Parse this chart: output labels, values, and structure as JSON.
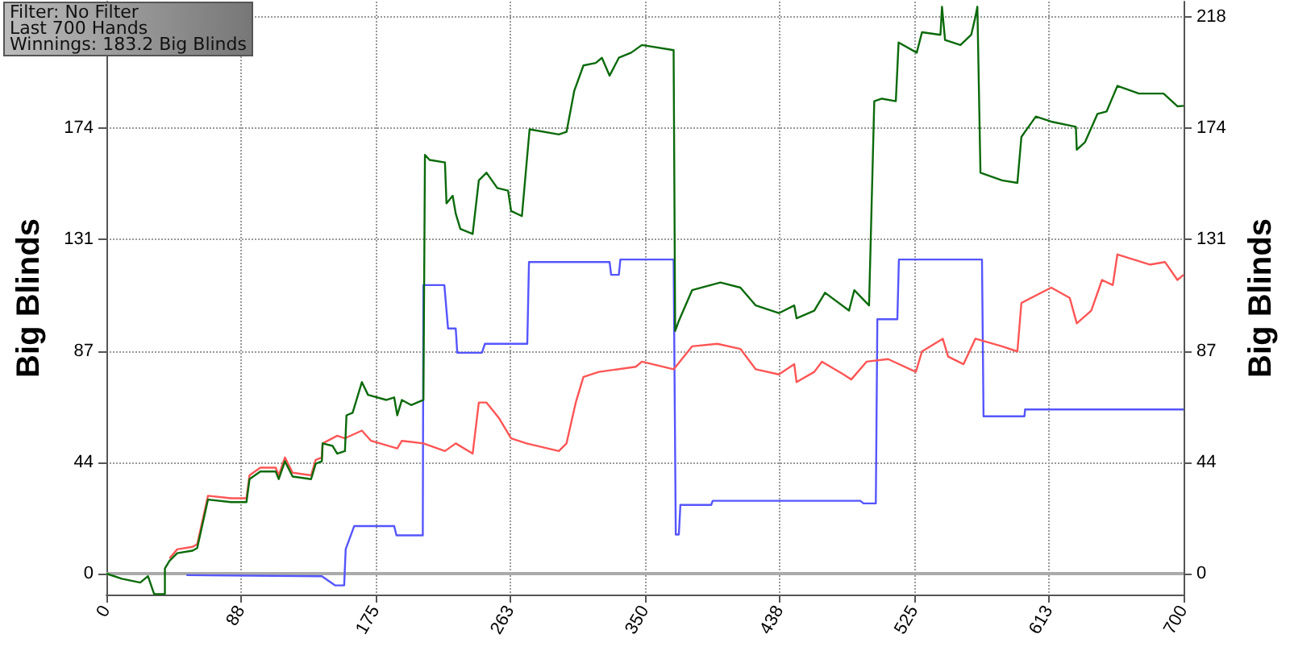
{
  "chart_data": {
    "type": "line",
    "ylabel": "Big Blinds",
    "y2label": "Big Blinds",
    "annotations": [
      "Filter: No Filter",
      "Last 700 Hands",
      "Winnings: 183.2 Big Blinds"
    ],
    "xlim": [
      0,
      700
    ],
    "xticks": [
      0,
      {
        "value": 87.5,
        "label": "88"
      },
      {
        "value": 175,
        "label": "175"
      },
      {
        "value": 262.5,
        "label": "263"
      },
      {
        "value": 350,
        "label": "350"
      },
      {
        "value": 437.5,
        "label": "438"
      },
      {
        "value": 525,
        "label": "525"
      },
      {
        "value": 612.5,
        "label": "613"
      },
      700
    ],
    "ylim": [
      -8.2,
      224
    ],
    "yticks": [
      0,
      {
        "value": 43.6,
        "label": "44"
      },
      {
        "value": 87.2,
        "label": "87"
      },
      {
        "value": 130.8,
        "label": "131"
      },
      {
        "value": 174.4,
        "label": "174"
      },
      {
        "value": 218,
        "label": null
      }
    ],
    "y2lim": [
      -8.2,
      224
    ],
    "y2ticks": [
      0,
      {
        "value": 43.6,
        "label": "44"
      },
      {
        "value": 87.2,
        "label": "87"
      },
      {
        "value": 130.8,
        "label": "131"
      },
      {
        "value": 174.4,
        "label": "174"
      },
      218
    ],
    "grid": true,
    "marker": "none",
    "line_style": "solid",
    "ref_lines": [
      {
        "axis": "y",
        "value": 0,
        "label": null,
        "color": "#aaaaaa"
      }
    ],
    "series": [
      {
        "color": "#0a6a0a",
        "x": [
          0,
          10,
          22,
          27,
          31,
          38,
          38,
          41,
          46,
          56,
          59,
          66,
          81,
          91,
          93,
          100,
          110,
          112,
          116,
          121,
          133,
          136,
          140,
          140.5,
          147,
          150,
          155,
          156,
          160,
          166,
          170,
          182,
          187,
          189,
          192,
          198,
          206,
          207,
          210,
          220,
          221,
          225,
          227,
          230,
          238,
          242,
          247,
          254,
          261,
          263,
          270,
          275,
          294,
          299,
          304,
          310,
          318,
          322,
          327,
          333,
          341,
          348,
          368.6,
          369.6,
          372,
          380.6,
          399,
          412,
          422,
          437,
          447,
          448.5,
          460,
          467,
          482.6,
          486,
          495.6,
          499,
          504,
          513,
          514.8,
          526.6,
          530,
          542,
          543,
          545,
          555,
          562,
          564.7,
          566,
          568,
          582,
          592,
          594.6,
          604,
          614,
          630,
          630.6,
          636,
          644,
          650,
          657,
          671,
          687,
          696,
          700
        ],
        "values": [
          0,
          -2,
          -3.5,
          -1,
          -8,
          -8,
          2,
          5,
          8,
          9,
          10,
          29,
          28,
          28,
          37,
          40,
          40,
          37,
          44,
          38,
          37,
          43,
          44,
          51,
          50,
          47,
          48,
          62,
          63,
          75,
          70,
          68,
          69,
          62,
          68,
          66,
          68,
          164,
          162,
          161,
          145,
          148,
          141,
          135,
          133,
          154,
          157,
          151,
          150,
          142,
          140,
          174,
          172,
          173,
          189,
          199,
          200,
          202,
          195,
          202,
          204,
          207,
          205,
          95,
          99,
          111,
          114,
          112,
          105,
          102,
          105,
          100,
          103,
          110,
          103,
          111,
          105,
          185,
          186,
          185,
          208,
          204,
          212,
          211,
          222,
          209,
          207,
          211,
          218,
          222,
          157,
          154,
          153,
          171,
          179,
          177,
          175,
          166,
          169,
          180,
          181,
          191,
          188,
          188,
          183,
          183.2
        ]
      },
      {
        "color": "#ff5555",
        "x": [
          41,
          46,
          56,
          59,
          66,
          81,
          91,
          93,
          100,
          110,
          112,
          116,
          121,
          133,
          136,
          140,
          140.5,
          150,
          155,
          166,
          172,
          189,
          192,
          206,
          220,
          227,
          238,
          242,
          247,
          255,
          263,
          273,
          294,
          299,
          305,
          310,
          320,
          344,
          348,
          368.6,
          380.6,
          397,
          412,
          422,
          437,
          447,
          448.5,
          460,
          465,
          479,
          484,
          494,
          508,
          526,
          530,
          543.5,
          547,
          557,
          564.7,
          582,
          592,
          594.6,
          614,
          626,
          630.6,
          640,
          647,
          654,
          657,
          678,
          688,
          696,
          700
        ],
        "values": [
          6,
          9.5,
          10.5,
          11.5,
          30.5,
          29.5,
          29.5,
          38.5,
          41.5,
          41.5,
          38.5,
          45.5,
          39.5,
          38.5,
          44.5,
          45.5,
          51,
          54,
          53,
          56,
          52,
          49,
          52,
          51,
          48,
          51,
          47,
          67,
          67,
          61,
          53,
          51,
          48,
          51,
          67,
          77,
          79,
          81,
          83,
          80,
          89,
          90,
          88,
          80,
          78,
          82,
          75,
          79,
          83,
          78,
          76,
          83,
          84,
          79,
          87,
          92,
          85,
          82,
          92,
          89,
          87,
          106,
          112,
          108,
          98,
          103,
          115,
          113,
          125,
          121,
          122,
          115,
          117
        ]
      },
      {
        "color": "#5555ff",
        "x": [
          52,
          140,
          148.5,
          154.5,
          155.5,
          161,
          187,
          188.5,
          205.6,
          206,
          219.6,
          222,
          227,
          228,
          244,
          246,
          273.5,
          274.6,
          327,
          328,
          333,
          334,
          368.6,
          370,
          372,
          373,
          393,
          394,
          490,
          492,
          500,
          501,
          514,
          515,
          569,
          570,
          596.6,
          597,
          700
        ],
        "values": [
          -0.6,
          -1,
          -4.6,
          -4.6,
          9.6,
          18.6,
          18.6,
          15,
          15,
          113,
          113,
          96,
          96,
          86.5,
          86.5,
          90,
          90,
          122,
          122,
          117,
          117,
          123,
          123,
          15.3,
          15.3,
          26.9,
          26.9,
          28.5,
          28.5,
          27.5,
          27.5,
          99.6,
          99.6,
          123,
          123,
          61.6,
          61.6,
          64.3,
          64.3
        ]
      }
    ]
  }
}
